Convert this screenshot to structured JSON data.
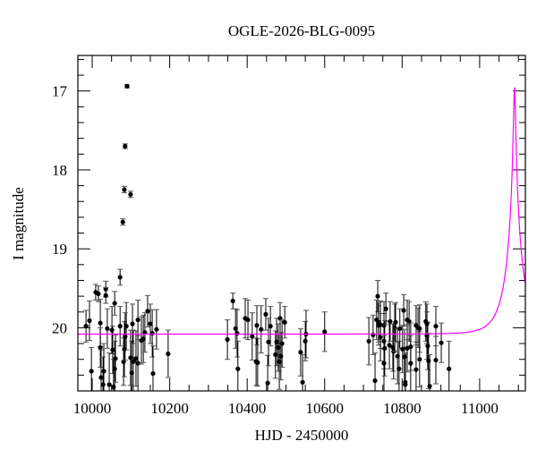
{
  "chart_data": {
    "type": "scatter",
    "title": "OGLE-2026-BLG-0095",
    "xlabel": "HJD - 2450000",
    "ylabel": "I magnitude",
    "xlim": [
      9963,
      11118
    ],
    "ylim": [
      20.8,
      16.55
    ],
    "y_inverted": true,
    "grid": false,
    "x_ticks": [
      10000,
      10200,
      10400,
      10600,
      10800,
      11000
    ],
    "x_tick_labels": [
      "10000",
      "10200",
      "10400",
      "10600",
      "10800",
      "11000"
    ],
    "y_ticks": [
      17,
      18,
      19,
      20
    ],
    "y_tick_labels": [
      "17",
      "18",
      "19",
      "20"
    ],
    "colors": {
      "points": "#000000",
      "model": "#ff00ff"
    },
    "model": {
      "type": "point-lens",
      "t0": 11090,
      "tE": 44,
      "u0": 0.056,
      "baseline_mag": 20.08
    },
    "points_columns": [
      "HJD-2450000",
      "I",
      "err"
    ],
    "points": [
      [
        9984,
        19.98,
        0.2
      ],
      [
        9993,
        19.91,
        0.25
      ],
      [
        9998,
        20.55,
        0.3
      ],
      [
        10009,
        19.55,
        0.1
      ],
      [
        10016,
        19.57,
        0.1
      ],
      [
        10035,
        19.51,
        0.1
      ],
      [
        10035,
        19.59,
        0.1
      ],
      [
        10058,
        19.69,
        0.15
      ],
      [
        10021,
        19.94,
        0.3
      ],
      [
        10021,
        20.25,
        0.25
      ],
      [
        10023,
        20.63,
        0.35
      ],
      [
        10028,
        20.72,
        0.35
      ],
      [
        10030,
        20.55,
        0.35
      ],
      [
        10039,
        20.01,
        0.25
      ],
      [
        10044,
        20.72,
        0.4
      ],
      [
        10051,
        20.03,
        0.3
      ],
      [
        10053,
        20.28,
        0.3
      ],
      [
        10055,
        20.75,
        0.35
      ],
      [
        10058,
        20.52,
        0.35
      ],
      [
        10060,
        20.39,
        0.3
      ],
      [
        10072,
        19.98,
        0.25
      ],
      [
        10081,
        20.43,
        0.3
      ],
      [
        10083,
        20.27,
        0.35
      ],
      [
        10088,
        19.98,
        0.3
      ],
      [
        10085,
        20.11,
        0.3
      ],
      [
        10099,
        20.38,
        0.35
      ],
      [
        10102,
        20.57,
        0.4
      ],
      [
        10104,
        19.95,
        0.25
      ],
      [
        10106,
        20.43,
        0.4
      ],
      [
        10113,
        20.39,
        0.35
      ],
      [
        10118,
        20.45,
        0.35
      ],
      [
        10118,
        19.9,
        0.25
      ],
      [
        10127,
        20.16,
        0.3
      ],
      [
        10132,
        20.14,
        0.3
      ],
      [
        10136,
        20.06,
        0.25
      ],
      [
        10143,
        19.79,
        0.2
      ],
      [
        10150,
        19.95,
        0.25
      ],
      [
        10155,
        20.07,
        0.3
      ],
      [
        10157,
        20.58,
        0.35
      ],
      [
        10166,
        20.02,
        0.25
      ],
      [
        10196,
        20.33,
        0.3
      ],
      [
        10349,
        20.15,
        0.25
      ],
      [
        10363,
        19.66,
        0.1
      ],
      [
        10370,
        20.01,
        0.25
      ],
      [
        10374,
        20.07,
        0.3
      ],
      [
        10376,
        20.52,
        0.35
      ],
      [
        10395,
        19.88,
        0.25
      ],
      [
        10402,
        19.9,
        0.25
      ],
      [
        10413,
        20.11,
        0.3
      ],
      [
        10423,
        20.43,
        0.3
      ],
      [
        10427,
        20.44,
        0.3
      ],
      [
        10425,
        19.97,
        0.25
      ],
      [
        10436,
        20.02,
        0.3
      ],
      [
        10448,
        19.83,
        0.2
      ],
      [
        10453,
        20.7,
        0.35
      ],
      [
        10455,
        20.18,
        0.3
      ],
      [
        10460,
        19.98,
        0.25
      ],
      [
        10473,
        20.34,
        0.3
      ],
      [
        10476,
        20.18,
        0.3
      ],
      [
        10480,
        20.25,
        0.3
      ],
      [
        10483,
        20.43,
        0.35
      ],
      [
        10485,
        19.88,
        0.2
      ],
      [
        10487,
        20.36,
        0.3
      ],
      [
        10490,
        20.2,
        0.3
      ],
      [
        10497,
        19.93,
        0.2
      ],
      [
        10538,
        20.31,
        0.3
      ],
      [
        10543,
        20.69,
        0.35
      ],
      [
        10550,
        20.17,
        0.25
      ],
      [
        10552,
        20.08,
        0.3
      ],
      [
        10600,
        20.05,
        0.25
      ],
      [
        10714,
        20.17,
        0.3
      ],
      [
        10725,
        20.09,
        0.25
      ],
      [
        10730,
        20.67,
        0.35
      ],
      [
        10737,
        19.6,
        0.2
      ],
      [
        10734,
        19.9,
        0.25
      ],
      [
        10739,
        19.97,
        0.25
      ],
      [
        10739,
        19.93,
        0.25
      ],
      [
        10744,
        19.96,
        0.3
      ],
      [
        10744,
        20.12,
        0.3
      ],
      [
        10753,
        20.17,
        0.35
      ],
      [
        10753,
        19.97,
        0.3
      ],
      [
        10755,
        20.26,
        0.35
      ],
      [
        10753,
        20.45,
        0.35
      ],
      [
        10758,
        19.76,
        0.2
      ],
      [
        10767,
        20.22,
        0.3
      ],
      [
        10769,
        19.92,
        0.25
      ],
      [
        10776,
        20.25,
        0.3
      ],
      [
        10778,
        20.3,
        0.35
      ],
      [
        10781,
        20.0,
        0.3
      ],
      [
        10783,
        19.93,
        0.25
      ],
      [
        10788,
        20.36,
        0.35
      ],
      [
        10792,
        20.52,
        0.35
      ],
      [
        10794,
        20.01,
        0.25
      ],
      [
        10801,
        20.27,
        0.3
      ],
      [
        10804,
        19.78,
        0.2
      ],
      [
        10806,
        20.37,
        0.35
      ],
      [
        10808,
        20.69,
        0.35
      ],
      [
        10808,
        20.72,
        0.4
      ],
      [
        10813,
        20.26,
        0.3
      ],
      [
        10813,
        19.9,
        0.25
      ],
      [
        10818,
        19.92,
        0.25
      ],
      [
        10822,
        20.24,
        0.3
      ],
      [
        10822,
        20.45,
        0.35
      ],
      [
        10836,
        20.53,
        0.35
      ],
      [
        10836,
        19.97,
        0.25
      ],
      [
        10841,
        20.0,
        0.25
      ],
      [
        10845,
        20.4,
        0.35
      ],
      [
        10845,
        20.01,
        0.3
      ],
      [
        10861,
        19.92,
        0.25
      ],
      [
        10864,
        20.1,
        0.3
      ],
      [
        10866,
        20.23,
        0.3
      ],
      [
        10864,
        19.95,
        0.25
      ],
      [
        10868,
        20.42,
        0.35
      ],
      [
        10871,
        20.74,
        0.4
      ],
      [
        10887,
        19.98,
        0.25
      ],
      [
        10887,
        20.41,
        0.3
      ],
      [
        10901,
        20.19,
        0.25
      ],
      [
        10921,
        20.52,
        0.35
      ],
      [
        10072,
        19.36,
        0.1
      ],
      [
        10079,
        18.66,
        0.04
      ],
      [
        10083,
        18.25,
        0.04
      ],
      [
        10085,
        17.7,
        0.03
      ],
      [
        10090,
        16.94,
        0.02
      ],
      [
        10099,
        18.31,
        0.04
      ]
    ]
  }
}
